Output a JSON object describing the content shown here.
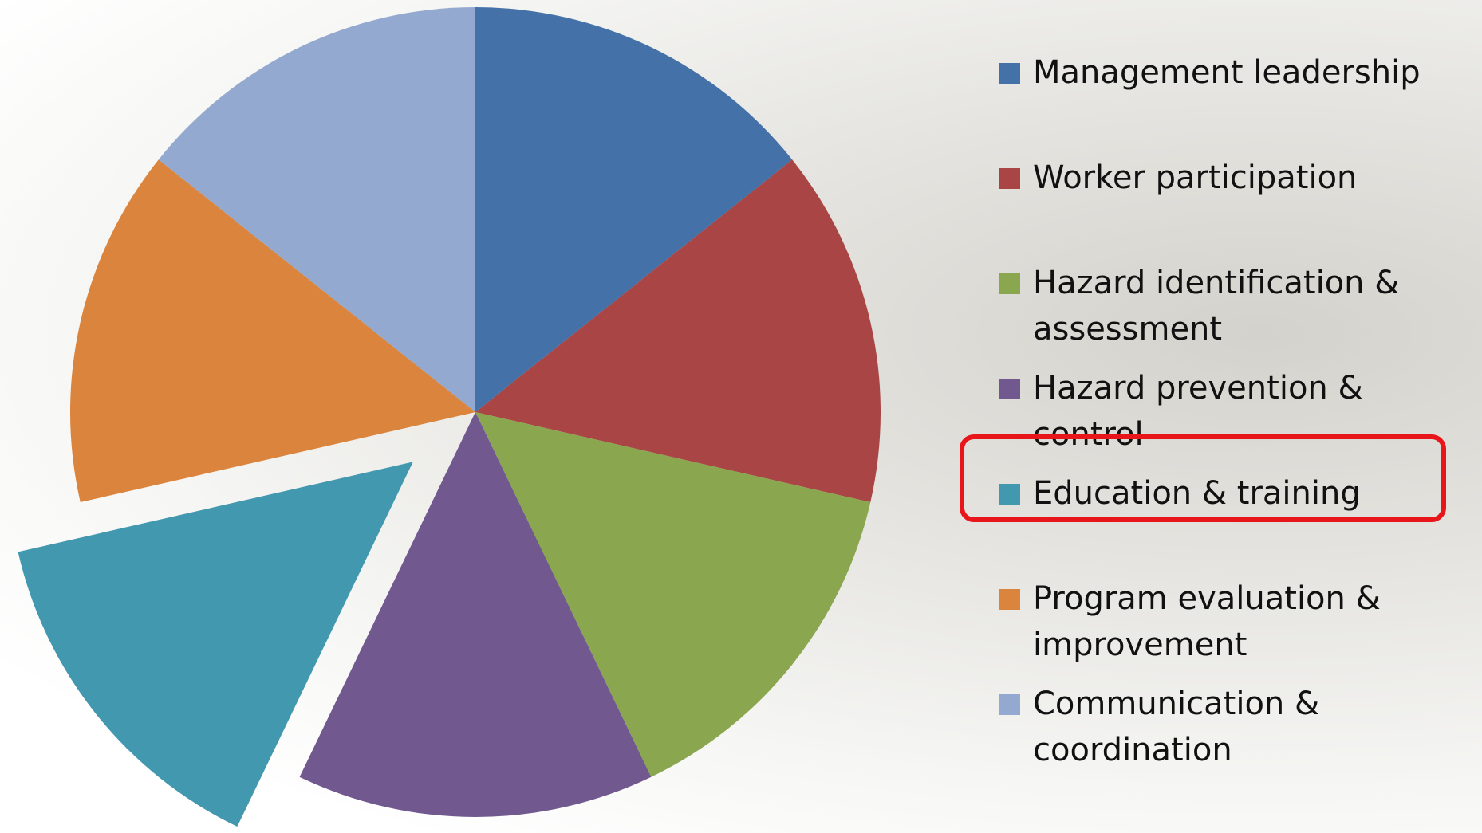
{
  "chart_data": {
    "type": "pie",
    "categories": [
      "Management leadership",
      "Worker participation",
      "Hazard identification & assessment",
      "Hazard prevention & control",
      "Education & training",
      "Program evaluation & improvement",
      "Communication & coordination"
    ],
    "values": [
      1,
      1,
      1,
      1,
      1,
      1,
      1
    ],
    "colors": [
      "#4472a8",
      "#a94544",
      "#8aa64e",
      "#71588f",
      "#4198af",
      "#db843d",
      "#93a9cf"
    ],
    "highlight": "Education & training",
    "legend": "right"
  }
}
